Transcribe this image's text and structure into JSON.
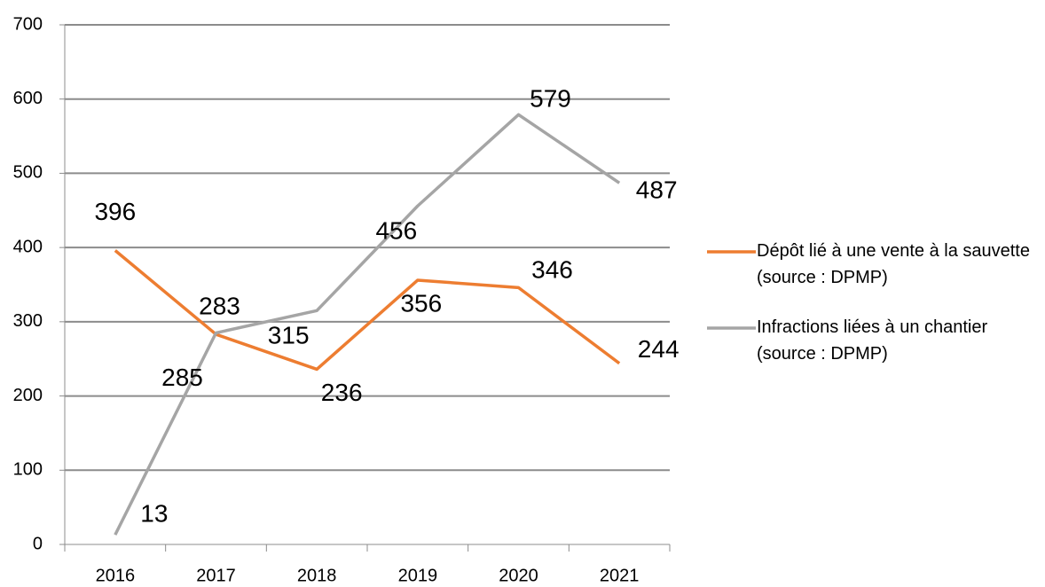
{
  "chart_data": {
    "type": "line",
    "categories": [
      "2016",
      "2017",
      "2018",
      "2019",
      "2020",
      "2021"
    ],
    "series": [
      {
        "name": "Dépôt lié à une vente à la sauvette (source : DPMP)",
        "color": "#ed7d31",
        "values": [
          396,
          283,
          236,
          356,
          346,
          244
        ]
      },
      {
        "name": "Infractions liées à un chantier (source : DPMP)",
        "color": "#a5a5a5",
        "values": [
          13,
          285,
          315,
          456,
          579,
          487
        ]
      }
    ],
    "ylim": [
      0,
      700
    ],
    "yticks": [
      0,
      100,
      200,
      300,
      400,
      500,
      600,
      700
    ],
    "grid": true,
    "legend": "right"
  }
}
